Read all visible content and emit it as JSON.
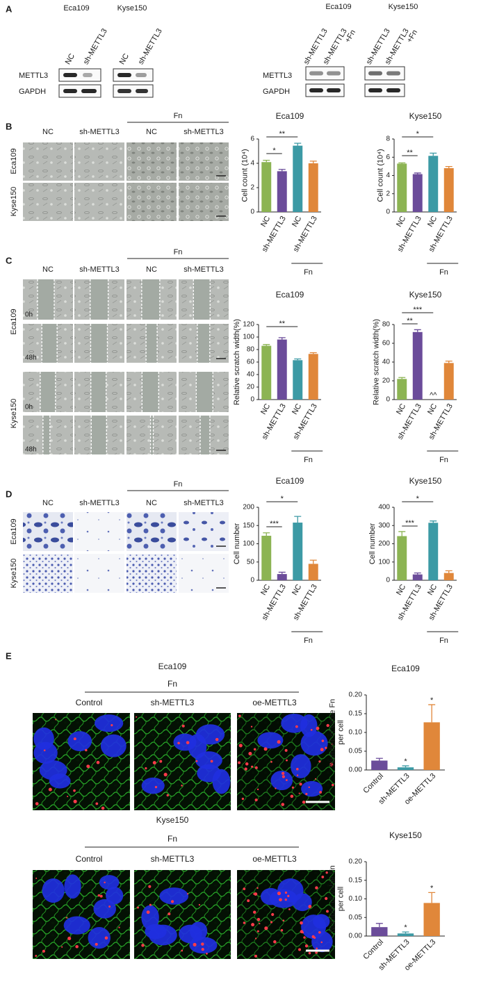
{
  "panels": {
    "A": {
      "label": "A",
      "left": {
        "lines": [
          "Eca109",
          "Kyse150"
        ],
        "lanes": [
          "NC",
          "sh-METTL3",
          "NC",
          "sh-METTL3"
        ],
        "proteins": [
          "METTL3",
          "GAPDH"
        ]
      },
      "right": {
        "lines": [
          "Eca109",
          "Kyse150"
        ],
        "lanes": [
          [
            "sh-METTL3"
          ],
          [
            "sh-METTL3",
            "+Fn"
          ],
          [
            "sh-METTL3"
          ],
          [
            "sh-METTL3",
            "+Fn"
          ]
        ],
        "proteins": [
          "METTL3",
          "GAPDH"
        ]
      }
    },
    "B": {
      "label": "B",
      "treatment": "Fn",
      "columns": [
        "NC",
        "sh-METTL3",
        "NC",
        "sh-METTL3"
      ],
      "rows": [
        "Eca109",
        "Kyse150"
      ]
    },
    "C": {
      "label": "C",
      "treatment": "Fn",
      "columns": [
        "NC",
        "sh-METTL3",
        "NC",
        "sh-METTL3"
      ],
      "rows": [
        "Eca109",
        "Kyse150"
      ],
      "times": [
        "0h",
        "48h",
        "0h",
        "48h"
      ]
    },
    "D": {
      "label": "D",
      "treatment": "Fn",
      "columns": [
        "NC",
        "sh-METTL3",
        "NC",
        "sh-METTL3"
      ],
      "rows": [
        "Eca109",
        "Kyse150"
      ]
    },
    "E": {
      "label": "E",
      "groups": [
        {
          "title": "Eca109",
          "treatment": "Fn",
          "columns": [
            "Control",
            "sh-METTL3",
            "oe-METTL3"
          ]
        },
        {
          "title": "Kyse150",
          "treatment": "Fn",
          "columns": [
            "Control",
            "sh-METTL3",
            "oe-METTL3"
          ]
        }
      ]
    }
  },
  "chart_data": [
    {
      "type": "bar",
      "title": "Eca109",
      "ylabel": "Cell count (10⁴)",
      "categories": [
        "NC",
        "sh-METTL3",
        "NC",
        "sh-METTL3"
      ],
      "group_label": "Fn",
      "values": [
        4.1,
        3.35,
        5.45,
        4.0
      ],
      "errors": [
        0.15,
        0.15,
        0.2,
        0.18
      ],
      "colors": [
        "#8cb453",
        "#6b4c9a",
        "#3c9aa5",
        "#e0873a"
      ],
      "ylim": [
        0,
        6
      ],
      "yticks": [
        0,
        2,
        4,
        6
      ],
      "annotations": [
        "*",
        "**"
      ]
    },
    {
      "type": "bar",
      "title": "Kyse150",
      "ylabel": "Cell count (10⁴)",
      "categories": [
        "NC",
        "sh-METTL3",
        "NC",
        "sh-METTL3"
      ],
      "group_label": "Fn",
      "values": [
        5.3,
        4.15,
        6.15,
        4.8
      ],
      "errors": [
        0.08,
        0.12,
        0.3,
        0.18
      ],
      "colors": [
        "#8cb453",
        "#6b4c9a",
        "#3c9aa5",
        "#e0873a"
      ],
      "ylim": [
        0,
        8
      ],
      "yticks": [
        0,
        2,
        4,
        6,
        8
      ],
      "annotations": [
        "**",
        "*"
      ]
    },
    {
      "type": "bar",
      "title": "Eca109",
      "ylabel": "Relative scratch width(%)",
      "categories": [
        "NC",
        "sh-METTL3",
        "NC",
        "sh-METTL3"
      ],
      "group_label": "Fn",
      "values": [
        86,
        96,
        63,
        73
      ],
      "errors": [
        2,
        3,
        2,
        2
      ],
      "colors": [
        "#8cb453",
        "#6b4c9a",
        "#3c9aa5",
        "#e0873a"
      ],
      "ylim": [
        0,
        120
      ],
      "yticks": [
        0,
        20,
        40,
        60,
        80,
        100,
        120
      ],
      "annotations": [
        "**"
      ]
    },
    {
      "type": "bar",
      "title": "Kyse150",
      "ylabel": "Relative scratch width(%)",
      "categories": [
        "NC",
        "sh-METTL3",
        "NC",
        "sh-METTL3"
      ],
      "group_label": "Fn",
      "values": [
        22,
        72,
        0,
        39
      ],
      "errors": [
        1.5,
        2.5,
        0,
        2
      ],
      "colors": [
        "#8cb453",
        "#6b4c9a",
        "#3c9aa5",
        "#e0873a"
      ],
      "ylim": [
        0,
        80
      ],
      "yticks": [
        0,
        20,
        40,
        60,
        80
      ],
      "annotations": [
        "***",
        "**",
        "^^"
      ]
    },
    {
      "type": "bar",
      "title": "Eca109",
      "ylabel": "Cell number",
      "categories": [
        "NC",
        "sh-METTL3",
        "NC",
        "sh-METTL3"
      ],
      "group_label": "Fn",
      "values": [
        122,
        17,
        158,
        45
      ],
      "errors": [
        8,
        5,
        17,
        10
      ],
      "colors": [
        "#8cb453",
        "#6b4c9a",
        "#3c9aa5",
        "#e0873a"
      ],
      "ylim": [
        0,
        200
      ],
      "yticks": [
        0,
        50,
        100,
        150,
        200
      ],
      "annotations": [
        "*",
        "***"
      ]
    },
    {
      "type": "bar",
      "title": "Kyse150",
      "ylabel": "Cell number",
      "categories": [
        "NC",
        "sh-METTL3",
        "NC",
        "sh-METTL3"
      ],
      "group_label": "Fn",
      "values": [
        242,
        32,
        315,
        40
      ],
      "errors": [
        25,
        8,
        10,
        12
      ],
      "colors": [
        "#8cb453",
        "#6b4c9a",
        "#3c9aa5",
        "#e0873a"
      ],
      "ylim": [
        0,
        400
      ],
      "yticks": [
        0,
        100,
        200,
        300,
        400
      ],
      "annotations": [
        "*",
        "***"
      ]
    },
    {
      "type": "bar",
      "title": "Eca109",
      "ylabel": [
        "Number of vable Fn",
        "per cell"
      ],
      "categories": [
        "Control",
        "sh-METTL3",
        "oe-METTL3"
      ],
      "values": [
        0.025,
        0.007,
        0.127
      ],
      "errors": [
        0.006,
        0.004,
        0.047
      ],
      "colors": [
        "#6b4c9a",
        "#3c9aa5",
        "#e0873a"
      ],
      "ylim": [
        0,
        0.2
      ],
      "yticks": [
        {
          "value": 0,
          "label": "0.00"
        },
        {
          "value": 0.05,
          "label": "0.05"
        },
        {
          "value": 0.1,
          "label": "0.10"
        },
        {
          "value": 0.15,
          "label": "0.15"
        },
        {
          "value": 0.2,
          "label": "0.20"
        }
      ],
      "annotations": [
        "*",
        "*"
      ]
    },
    {
      "type": "bar",
      "title": "Kyse150",
      "ylabel": [
        "Number of vable Fn",
        "per cell"
      ],
      "categories": [
        "Control",
        "sh-METTL3",
        "oe-METTL3"
      ],
      "values": [
        0.024,
        0.007,
        0.089
      ],
      "errors": [
        0.01,
        0.004,
        0.028
      ],
      "colors": [
        "#6b4c9a",
        "#3c9aa5",
        "#e0873a"
      ],
      "ylim": [
        0,
        0.2
      ],
      "yticks": [
        {
          "value": 0,
          "label": "0.00"
        },
        {
          "value": 0.05,
          "label": "0.05"
        },
        {
          "value": 0.1,
          "label": "0.10"
        },
        {
          "value": 0.15,
          "label": "0.15"
        },
        {
          "value": 0.2,
          "label": "0.20"
        }
      ],
      "annotations": [
        "*",
        "*"
      ]
    }
  ]
}
